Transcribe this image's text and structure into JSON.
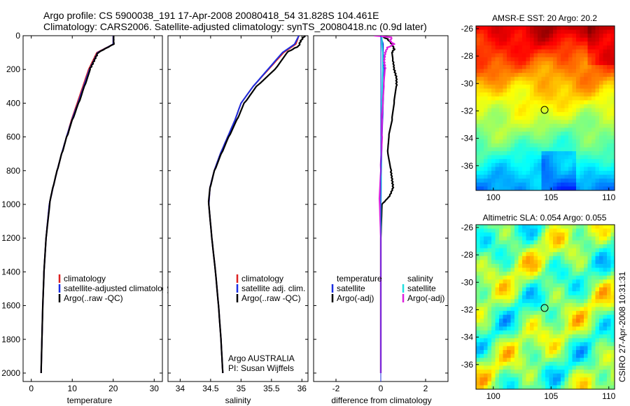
{
  "header": {
    "line1": "Argo profile: CS 5900038_191 17-Apr-2008 20080418_54 31.828S 104.461E",
    "line2": "Climatology: CARS2006. Satellite-adjusted climatology: synTS_20080418.nc (0.9d later)"
  },
  "side_label": "CSIRO 27-Apr-2008 10:31:31",
  "colors": {
    "clim": "#dd2222",
    "sat": "#1a2ee0",
    "argo": "#000000",
    "sal_sat": "#22e0e0",
    "sal_argo": "#dd22dd"
  },
  "chart_data": [
    {
      "type": "line",
      "id": "temperature",
      "xlabel": "temperature",
      "xlim": [
        -2,
        32
      ],
      "ylim": [
        0,
        2050
      ],
      "xticks": [
        "0",
        "10",
        "20",
        "30"
      ],
      "yticks": [
        "0",
        "200",
        "400",
        "600",
        "800",
        "1000",
        "1200",
        "1400",
        "1600",
        "1800",
        "2000"
      ],
      "legend": [
        "climatology",
        "satellite-adjusted climatology",
        "Argo(..raw -QC)"
      ],
      "series": [
        {
          "name": "climatology",
          "color": "clim",
          "depth": [
            0,
            50,
            100,
            150,
            200,
            300,
            400,
            500,
            600,
            700,
            800,
            900,
            1000,
            1200,
            1400,
            1600,
            1800,
            2000
          ],
          "values": [
            20.0,
            20.0,
            16.0,
            15.0,
            14.0,
            12.6,
            11.2,
            9.8,
            8.6,
            7.4,
            6.3,
            5.3,
            4.4,
            3.6,
            3.1,
            2.8,
            2.6,
            2.4
          ]
        },
        {
          "name": "satellite-adjusted climatology",
          "color": "sat",
          "depth": [
            0,
            50,
            100,
            150,
            200,
            300,
            400,
            500,
            600,
            700,
            800,
            900,
            1000,
            1200,
            1400,
            1600,
            1800,
            2000
          ],
          "values": [
            20.0,
            20.0,
            16.2,
            15.2,
            14.2,
            12.8,
            11.4,
            9.9,
            8.6,
            7.4,
            6.3,
            5.3,
            4.4,
            3.6,
            3.1,
            2.8,
            2.6,
            2.4
          ]
        },
        {
          "name": "Argo(..raw -QC)",
          "color": "argo",
          "depth": [
            0,
            50,
            100,
            150,
            200,
            300,
            400,
            500,
            600,
            700,
            800,
            900,
            1000,
            1200,
            1400,
            1600,
            1800,
            2000
          ],
          "values": [
            20.1,
            20.1,
            16.3,
            15.3,
            14.3,
            12.9,
            11.5,
            10.0,
            8.7,
            7.5,
            6.4,
            5.4,
            4.5,
            3.6,
            3.1,
            2.8,
            2.6,
            2.4
          ]
        }
      ]
    },
    {
      "type": "line",
      "id": "salinity",
      "xlabel": "salinity",
      "xlim": [
        33.8,
        36.1
      ],
      "ylim": [
        0,
        2050
      ],
      "xticks": [
        "34",
        "34.5",
        "35",
        "35.5",
        "36"
      ],
      "legend": [
        "climatology",
        "satellite adj. clim.",
        "Argo(..raw -QC)"
      ],
      "annotation": [
        "Argo AUSTRALIA",
        "PI: Susan Wijffels"
      ],
      "series": [
        {
          "name": "climatology",
          "color": "clim",
          "depth": [
            0,
            50,
            100,
            200,
            300,
            400,
            500,
            600,
            700,
            800,
            900,
            1000,
            1200,
            1400,
            1600,
            1800,
            2000
          ],
          "values": [
            35.95,
            35.9,
            35.7,
            35.45,
            35.2,
            35.0,
            34.9,
            34.78,
            34.66,
            34.56,
            34.49,
            34.47,
            34.52,
            34.58,
            34.63,
            34.67,
            34.7
          ]
        },
        {
          "name": "satellite adj. clim.",
          "color": "sat",
          "depth": [
            0,
            50,
            100,
            200,
            300,
            400,
            500,
            600,
            700,
            800,
            900,
            1000,
            1200,
            1400,
            1600,
            1800,
            2000
          ],
          "values": [
            35.95,
            35.88,
            35.68,
            35.44,
            35.2,
            35.0,
            34.9,
            34.78,
            34.66,
            34.56,
            34.49,
            34.47,
            34.52,
            34.58,
            34.63,
            34.67,
            34.7
          ]
        },
        {
          "name": "Argo(..raw -QC)",
          "color": "argo",
          "depth": [
            0,
            30,
            60,
            100,
            200,
            300,
            400,
            500,
            600,
            700,
            800,
            900,
            1000,
            1200,
            1400,
            1600,
            1800,
            2000
          ],
          "values": [
            36.05,
            35.98,
            35.95,
            35.75,
            35.55,
            35.25,
            35.05,
            34.93,
            34.8,
            34.68,
            34.57,
            34.5,
            34.47,
            34.52,
            34.58,
            34.63,
            34.67,
            34.7
          ]
        }
      ]
    },
    {
      "type": "line",
      "id": "difference",
      "xlabel": "difference from climatology",
      "xlim": [
        -3,
        3
      ],
      "ylim": [
        0,
        2050
      ],
      "xticks": [
        "-2",
        "0",
        "2"
      ],
      "legend_left_title": "temperature",
      "legend_right_title": "salinity",
      "legend_left": [
        "satellite",
        "Argo(-adj)"
      ],
      "legend_right": [
        "satellite",
        "Argo(-adj)"
      ],
      "series": [
        {
          "name": "temperature satellite",
          "color": "sat",
          "depth": [
            0,
            50,
            100,
            200,
            400,
            600,
            800,
            1000,
            1400,
            2000
          ],
          "values": [
            0.0,
            0.1,
            0.1,
            0.15,
            0.1,
            0.05,
            0.02,
            0.0,
            0.0,
            0.0
          ]
        },
        {
          "name": "temperature Argo(-adj)",
          "color": "argo",
          "depth": [
            0,
            20,
            50,
            80,
            100,
            150,
            200,
            250,
            300,
            400,
            500,
            600,
            700,
            800,
            850,
            900,
            950,
            1000,
            1200,
            1600,
            2000
          ],
          "values": [
            0.0,
            0.3,
            0.5,
            0.6,
            0.5,
            0.55,
            0.6,
            0.7,
            0.7,
            0.6,
            0.5,
            0.35,
            0.3,
            0.45,
            0.5,
            0.55,
            0.4,
            0.05,
            0.0,
            0.0,
            0.0
          ]
        },
        {
          "name": "salinity satellite",
          "color": "sal_sat",
          "depth": [
            0,
            50,
            100,
            200,
            400,
            600,
            800,
            1000,
            1400,
            2000
          ],
          "values": [
            0.05,
            0.05,
            0.08,
            0.08,
            0.05,
            0.03,
            0.02,
            0.0,
            0.0,
            0.0
          ]
        },
        {
          "name": "salinity Argo(-adj)",
          "color": "sal_argo",
          "depth": [
            0,
            10,
            30,
            50,
            70,
            100,
            150,
            200,
            300,
            400,
            500,
            600,
            800,
            1000,
            1200,
            1600,
            2000
          ],
          "values": [
            -0.3,
            0.5,
            0.4,
            0.6,
            0.3,
            0.2,
            0.15,
            0.2,
            0.15,
            0.1,
            0.05,
            0.05,
            0.0,
            -0.05,
            0.0,
            0.0,
            0.0
          ]
        }
      ]
    },
    {
      "type": "heatmap",
      "id": "sst_map",
      "title": "AMSR-E SST: 20 Argo: 20.2",
      "xlim": [
        98.5,
        110.5
      ],
      "ylim": [
        -37.8,
        -25.8
      ],
      "xticks": [
        "100",
        "105",
        "110"
      ],
      "yticks": [
        "-26",
        "-28",
        "-30",
        "-32",
        "-34",
        "-36"
      ],
      "marker": {
        "lon": 104.461,
        "lat": -31.828
      }
    },
    {
      "type": "heatmap",
      "id": "sla_map",
      "title": "Altimetric SLA: 0.054 Argo: 0.055",
      "xlim": [
        98.5,
        110.5
      ],
      "ylim": [
        -37.8,
        -25.8
      ],
      "xticks": [
        "100",
        "105",
        "110"
      ],
      "yticks": [
        "-26",
        "-28",
        "-30",
        "-32",
        "-34",
        "-36"
      ],
      "marker": {
        "lon": 104.461,
        "lat": -31.828
      }
    }
  ]
}
